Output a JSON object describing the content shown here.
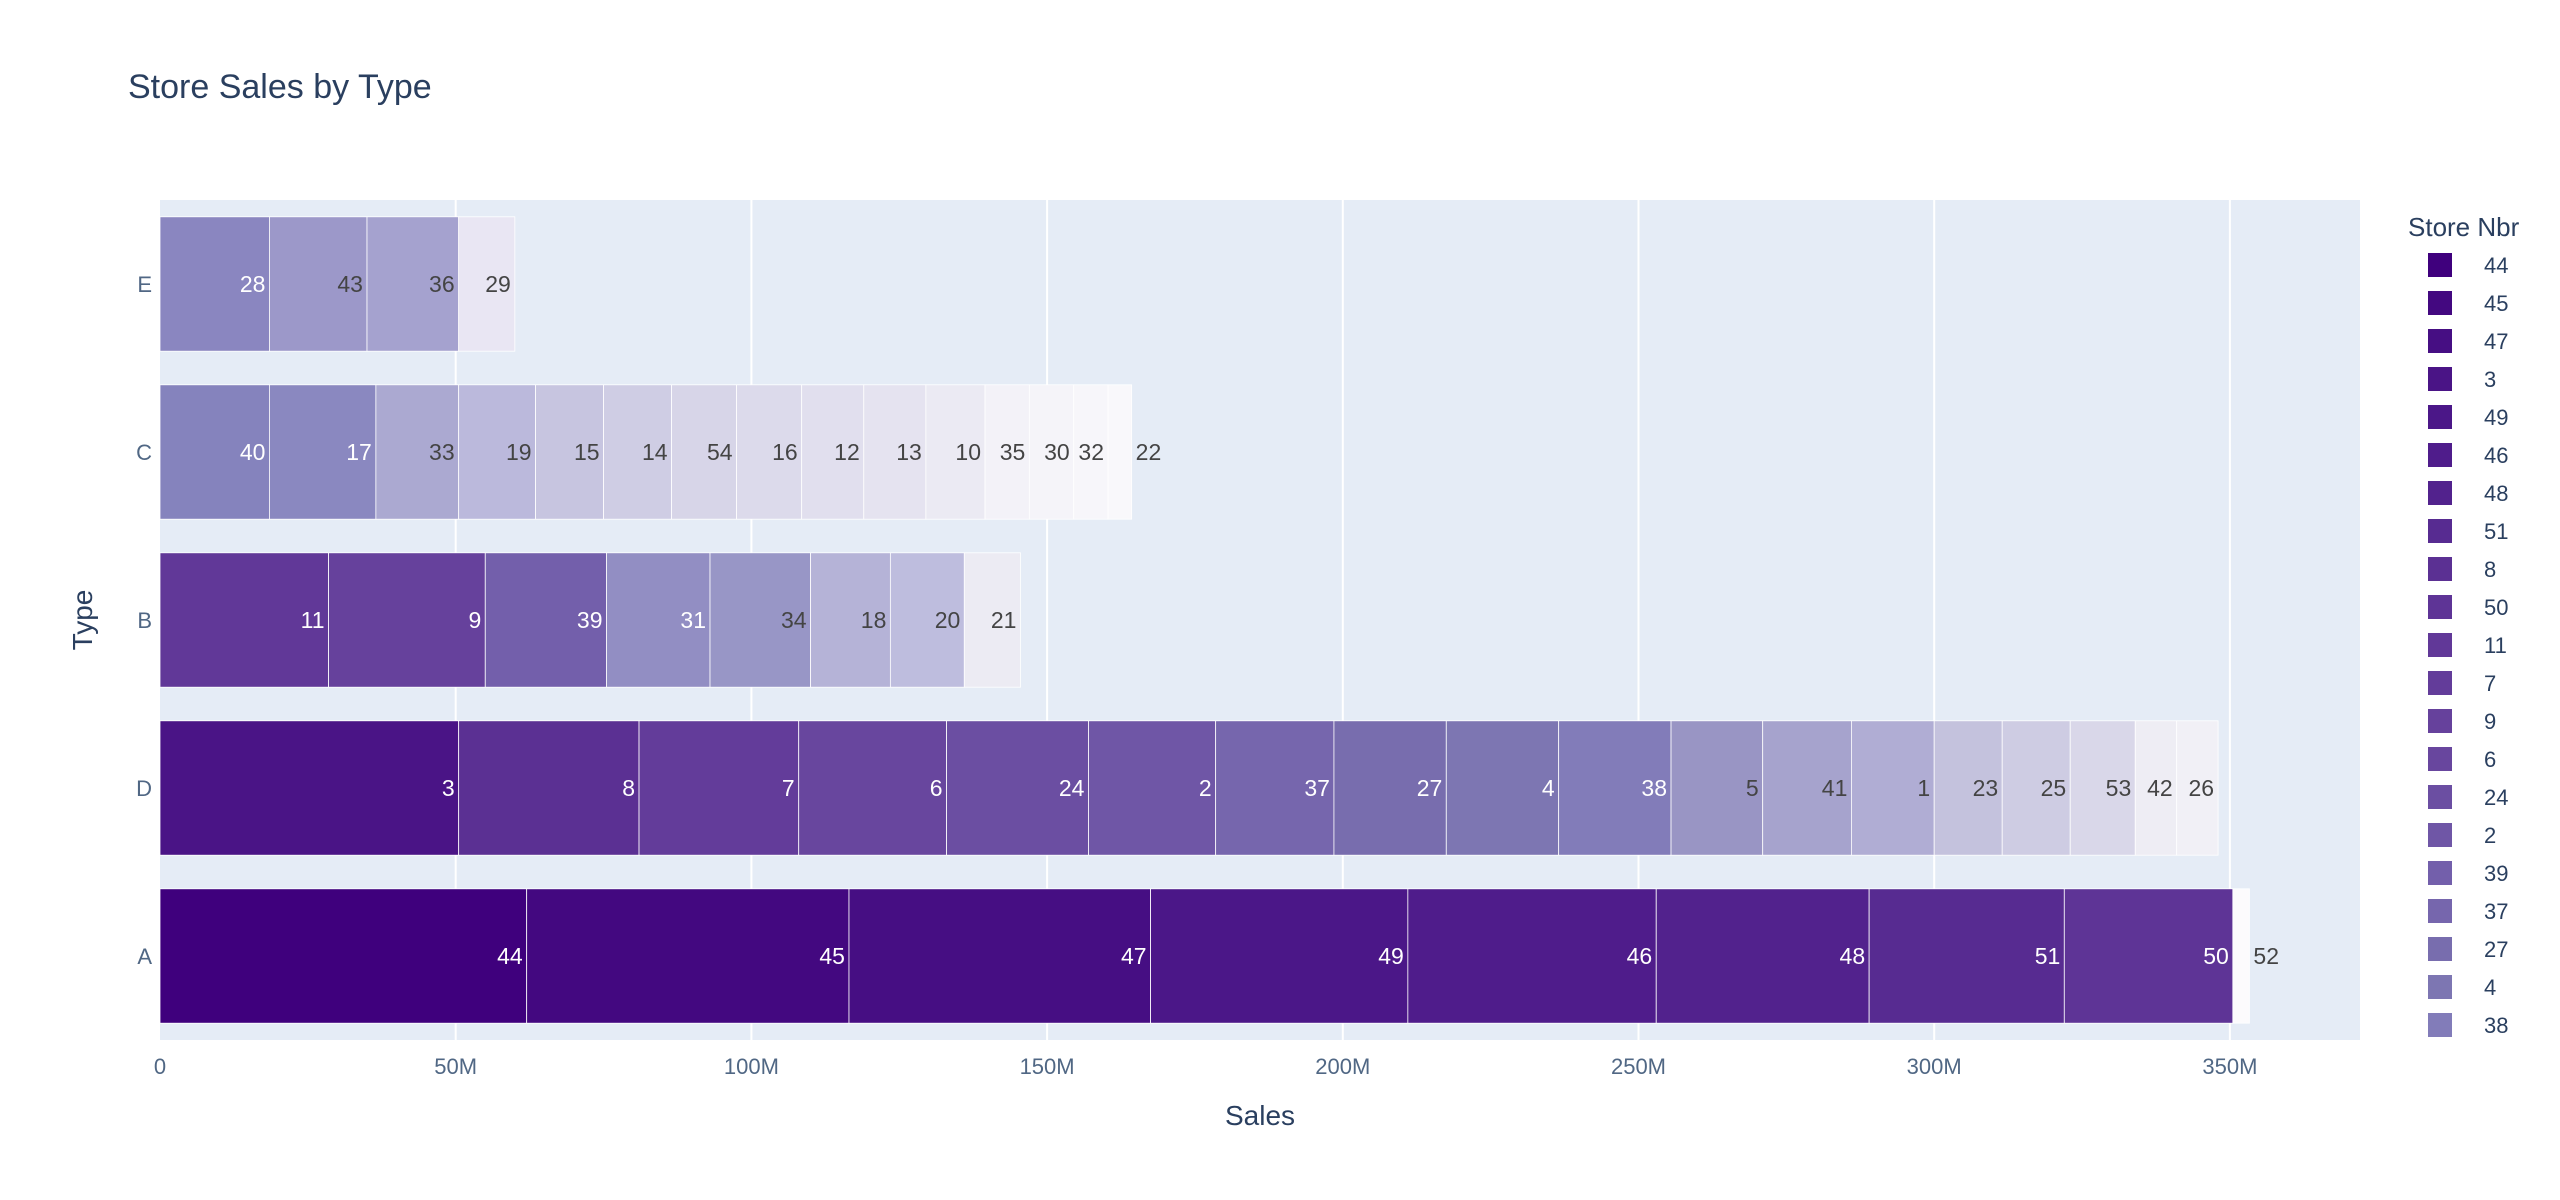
{
  "chart_data": {
    "type": "bar",
    "orientation": "horizontal",
    "barmode": "stack",
    "title": "Store Sales by Type",
    "xlabel": "Sales",
    "ylabel": "Type",
    "xlim": [
      0,
      372000000
    ],
    "x_ticks": [
      {
        "value": 0,
        "label": "0"
      },
      {
        "value": 50000000,
        "label": "50M"
      },
      {
        "value": 100000000,
        "label": "100M"
      },
      {
        "value": 150000000,
        "label": "150M"
      },
      {
        "value": 200000000,
        "label": "200M"
      },
      {
        "value": 250000000,
        "label": "250M"
      },
      {
        "value": 300000000,
        "label": "300M"
      },
      {
        "value": 350000000,
        "label": "350M"
      }
    ],
    "categories": [
      "E",
      "C",
      "B",
      "D",
      "A"
    ],
    "grid": true,
    "legend": {
      "title": "Store Nbr",
      "placement": "right",
      "entries": [
        {
          "label": "44",
          "color": "#3f007d"
        },
        {
          "label": "45",
          "color": "#430880"
        },
        {
          "label": "47",
          "color": "#460e83"
        },
        {
          "label": "3",
          "color": "#4a1486"
        },
        {
          "label": "49",
          "color": "#4b1788"
        },
        {
          "label": "46",
          "color": "#4f1c8b"
        },
        {
          "label": "48",
          "color": "#52228d"
        },
        {
          "label": "51",
          "color": "#572b91"
        },
        {
          "label": "8",
          "color": "#5b3093"
        },
        {
          "label": "50",
          "color": "#5e3496"
        },
        {
          "label": "11",
          "color": "#613898"
        },
        {
          "label": "7",
          "color": "#633c9a"
        },
        {
          "label": "9",
          "color": "#66419c"
        },
        {
          "label": "6",
          "color": "#68469e"
        },
        {
          "label": "24",
          "color": "#6b4ea2"
        },
        {
          "label": "2",
          "color": "#6f56a6"
        },
        {
          "label": "39",
          "color": "#735fab"
        },
        {
          "label": "37",
          "color": "#7666ad"
        },
        {
          "label": "27",
          "color": "#786dae"
        },
        {
          "label": "4",
          "color": "#7d76b2"
        },
        {
          "label": "38",
          "color": "#827cb9"
        }
      ]
    },
    "series": [
      {
        "category": "A",
        "segments": [
          {
            "label": "44",
            "value": 62000000,
            "color": "#3f007d"
          },
          {
            "label": "45",
            "value": 54500000,
            "color": "#430880"
          },
          {
            "label": "47",
            "value": 51000000,
            "color": "#460e83"
          },
          {
            "label": "49",
            "value": 43500000,
            "color": "#4b1788"
          },
          {
            "label": "46",
            "value": 42000000,
            "color": "#4f1c8b"
          },
          {
            "label": "48",
            "value": 36000000,
            "color": "#52228d"
          },
          {
            "label": "51",
            "value": 33000000,
            "color": "#572b91"
          },
          {
            "label": "50",
            "value": 28500000,
            "color": "#5e3496"
          },
          {
            "label": "52",
            "value": 2800000,
            "color": "#fcfbfd"
          }
        ]
      },
      {
        "category": "D",
        "segments": [
          {
            "label": "3",
            "value": 50500000,
            "color": "#4a1486"
          },
          {
            "label": "8",
            "value": 30500000,
            "color": "#5b3093"
          },
          {
            "label": "7",
            "value": 27000000,
            "color": "#633c9a"
          },
          {
            "label": "6",
            "value": 25000000,
            "color": "#68469e"
          },
          {
            "label": "24",
            "value": 24000000,
            "color": "#6b4ea2"
          },
          {
            "label": "2",
            "value": 21500000,
            "color": "#6f56a6"
          },
          {
            "label": "37",
            "value": 20000000,
            "color": "#7666ad"
          },
          {
            "label": "27",
            "value": 19000000,
            "color": "#786dae"
          },
          {
            "label": "4",
            "value": 19000000,
            "color": "#7d76b2"
          },
          {
            "label": "38",
            "value": 19000000,
            "color": "#827cb9"
          },
          {
            "label": "5",
            "value": 15500000,
            "color": "#9995c4"
          },
          {
            "label": "41",
            "value": 15000000,
            "color": "#a6a3cd"
          },
          {
            "label": "1",
            "value": 14000000,
            "color": "#b0add4"
          },
          {
            "label": "23",
            "value": 11500000,
            "color": "#c4c2dd"
          },
          {
            "label": "25",
            "value": 11500000,
            "color": "#cecce3"
          },
          {
            "label": "53",
            "value": 11000000,
            "color": "#d9d7e9"
          },
          {
            "label": "42",
            "value": 7000000,
            "color": "#eeedf4"
          },
          {
            "label": "26",
            "value": 7000000,
            "color": "#f1f0f6"
          }
        ]
      },
      {
        "category": "B",
        "segments": [
          {
            "label": "11",
            "value": 28500000,
            "color": "#613898"
          },
          {
            "label": "9",
            "value": 26500000,
            "color": "#66419c"
          },
          {
            "label": "39",
            "value": 20500000,
            "color": "#735fab"
          },
          {
            "label": "31",
            "value": 17500000,
            "color": "#928ec3"
          },
          {
            "label": "34",
            "value": 17000000,
            "color": "#9896c6"
          },
          {
            "label": "18",
            "value": 13500000,
            "color": "#b5b3d7"
          },
          {
            "label": "20",
            "value": 12500000,
            "color": "#bebdde"
          },
          {
            "label": "21",
            "value": 9500000,
            "color": "#ecebf3"
          }
        ]
      },
      {
        "category": "C",
        "segments": [
          {
            "label": "40",
            "value": 18500000,
            "color": "#8583bd"
          },
          {
            "label": "17",
            "value": 18000000,
            "color": "#8a88c0"
          },
          {
            "label": "33",
            "value": 14000000,
            "color": "#aba9d1"
          },
          {
            "label": "19",
            "value": 13000000,
            "color": "#bbb9dc"
          },
          {
            "label": "15",
            "value": 11500000,
            "color": "#c7c5e0"
          },
          {
            "label": "14",
            "value": 11500000,
            "color": "#cfcde4"
          },
          {
            "label": "54",
            "value": 11000000,
            "color": "#d7d5e8"
          },
          {
            "label": "16",
            "value": 11000000,
            "color": "#dcdaeb"
          },
          {
            "label": "12",
            "value": 10500000,
            "color": "#e1dfee"
          },
          {
            "label": "13",
            "value": 10500000,
            "color": "#e5e3f0"
          },
          {
            "label": "10",
            "value": 10000000,
            "color": "#ebeaf3"
          },
          {
            "label": "35",
            "value": 7500000,
            "color": "#f3f2f8"
          },
          {
            "label": "30",
            "value": 7500000,
            "color": "#f5f4f9"
          },
          {
            "label": "32",
            "value": 5800000,
            "color": "#f7f6fa"
          },
          {
            "label": "22",
            "value": 4000000,
            "color": "#f9f8fb"
          }
        ]
      },
      {
        "category": "E",
        "segments": [
          {
            "label": "28",
            "value": 18500000,
            "color": "#8a86c0"
          },
          {
            "label": "43",
            "value": 16500000,
            "color": "#9c98c9"
          },
          {
            "label": "36",
            "value": 15500000,
            "color": "#a5a2cf"
          },
          {
            "label": "29",
            "value": 9500000,
            "color": "#e9e6f3"
          }
        ]
      }
    ]
  }
}
